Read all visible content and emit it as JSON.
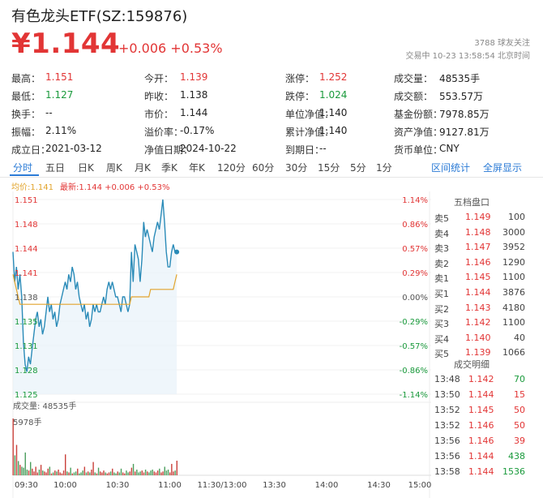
{
  "header": {
    "title": "有色龙头ETF(SZ:159876)",
    "price": "¥1.144",
    "change": "+0.006 +0.53%",
    "followers": "3788  球友关注",
    "trade_status": "交易中  10-23  13:58:54  北京时间"
  },
  "quotes": {
    "rows": [
      [
        {
          "label": "最高：",
          "value": "1.151",
          "color": "red"
        },
        {
          "label": "今开：",
          "value": "1.139",
          "color": "red"
        },
        {
          "label": "涨停：",
          "value": "1.252",
          "color": "red"
        },
        {
          "label": "成交量：",
          "value": "48535手",
          "color": "normal"
        }
      ],
      [
        {
          "label": "最低：",
          "value": "1.127",
          "color": "green"
        },
        {
          "label": "昨收：",
          "value": "1.138",
          "color": "normal"
        },
        {
          "label": "跌停：",
          "value": "1.024",
          "color": "green"
        },
        {
          "label": "成交额：",
          "value": "553.57万",
          "color": "normal"
        }
      ],
      [
        {
          "label": "换手：",
          "value": "--",
          "color": "normal"
        },
        {
          "label": "市价：",
          "value": "1.144",
          "color": "normal"
        },
        {
          "label": "单位净值：",
          "value": "1.140",
          "color": "normal"
        },
        {
          "label": "基金份额：",
          "value": "7978.85万",
          "color": "normal"
        }
      ],
      [
        {
          "label": "振幅：",
          "value": "2.11%",
          "color": "normal"
        },
        {
          "label": "溢价率：",
          "value": "-0.17%",
          "color": "normal"
        },
        {
          "label": "累计净值：",
          "value": "1.140",
          "color": "normal"
        },
        {
          "label": "资产净值：",
          "value": "9127.81万",
          "color": "normal"
        }
      ],
      [
        {
          "label": "成立日：",
          "value": "2021-03-12",
          "color": "normal"
        },
        {
          "label": "净值日期：",
          "value": "2024-10-22",
          "color": "normal"
        },
        {
          "label": "到期日：",
          "value": "--",
          "color": "normal"
        },
        {
          "label": "货币单位：",
          "value": "CNY",
          "color": "normal"
        }
      ]
    ]
  },
  "tabs": [
    "分时",
    "五日",
    "日K",
    "周K",
    "月K",
    "季K",
    "年K",
    "120分",
    "60分",
    "30分",
    "15分",
    "5分",
    "1分"
  ],
  "active_tab": "分时",
  "tab_actions": [
    "区间统计",
    "全屏显示"
  ],
  "chart_legend": {
    "avg": "均价:1.141",
    "latest": "最新:1.144 +0.006 +0.53%"
  },
  "order_book": {
    "title": "五档盘口",
    "asks": [
      {
        "label": "卖5",
        "price": "1.149",
        "volume": "100"
      },
      {
        "label": "卖4",
        "price": "1.148",
        "volume": "3000"
      },
      {
        "label": "卖3",
        "price": "1.147",
        "volume": "3952"
      },
      {
        "label": "卖2",
        "price": "1.146",
        "volume": "1290"
      },
      {
        "label": "卖1",
        "price": "1.145",
        "volume": "1100"
      }
    ],
    "bids": [
      {
        "label": "买1",
        "price": "1.144",
        "volume": "3876"
      },
      {
        "label": "买2",
        "price": "1.143",
        "volume": "4180"
      },
      {
        "label": "买3",
        "price": "1.142",
        "volume": "1100"
      },
      {
        "label": "买4",
        "price": "1.140",
        "volume": "40"
      },
      {
        "label": "买5",
        "price": "1.139",
        "volume": "1066"
      }
    ]
  },
  "trades": {
    "title": "成交明细",
    "rows": [
      {
        "time": "13:48",
        "price": "1.142",
        "volume": "70",
        "side": "buy"
      },
      {
        "time": "13:50",
        "price": "1.144",
        "volume": "15",
        "side": "sell"
      },
      {
        "time": "13:52",
        "price": "1.145",
        "volume": "50",
        "side": "sell"
      },
      {
        "time": "13:52",
        "price": "1.146",
        "volume": "50",
        "side": "sell"
      },
      {
        "time": "13:56",
        "price": "1.146",
        "volume": "39",
        "side": "sell"
      },
      {
        "time": "13:56",
        "price": "1.144",
        "volume": "438",
        "side": "buy"
      },
      {
        "time": "13:58",
        "price": "1.144",
        "volume": "1536",
        "side": "buy"
      }
    ]
  },
  "volume_panel": {
    "legend": "成交量: 48535手",
    "max_label": "5978手"
  },
  "colors": {
    "up": "#e23535",
    "down": "#1a9a3c",
    "price_line": "#2a8bb8",
    "avg_line": "#e2a42c",
    "accent": "#2b7bd6"
  },
  "chart_data": {
    "type": "line",
    "title": "",
    "price_axis": [
      "1.151",
      "1.148",
      "1.144",
      "1.141",
      "1.138",
      "1.135",
      "1.131",
      "1.128",
      "1.125"
    ],
    "percent_axis": [
      "1.14%",
      "0.86%",
      "0.57%",
      "0.29%",
      "0.00%",
      "-0.29%",
      "-0.57%",
      "-0.86%",
      "-1.14%"
    ],
    "ylim": [
      1.125,
      1.151
    ],
    "prev_close": 1.138,
    "x_ticks": [
      "09:30",
      "10:00",
      "10:30",
      "11:00",
      "11:30/13:00",
      "13:30",
      "14:00",
      "14:30",
      "15:00"
    ],
    "series": [
      {
        "name": "最新",
        "values": [
          1.144,
          1.14,
          1.142,
          1.139,
          1.141,
          1.138,
          1.132,
          1.129,
          1.128,
          1.13,
          1.129,
          1.131,
          1.133,
          1.135,
          1.136,
          1.134,
          1.135,
          1.133,
          1.134,
          1.136,
          1.138,
          1.136,
          1.137,
          1.135,
          1.136,
          1.134,
          1.135,
          1.137,
          1.138,
          1.139,
          1.14,
          1.139,
          1.141,
          1.14,
          1.142,
          1.141,
          1.139,
          1.14,
          1.138,
          1.137,
          1.136,
          1.137,
          1.135,
          1.136,
          1.134,
          1.135,
          1.137,
          1.136,
          1.137,
          1.136,
          1.136,
          1.137,
          1.138,
          1.137,
          1.139,
          1.14,
          1.139,
          1.14,
          1.139,
          1.138,
          1.138,
          1.137,
          1.136,
          1.138,
          1.138,
          1.137,
          1.136,
          1.137,
          1.144,
          1.14,
          1.145,
          1.144,
          1.143,
          1.14,
          1.143,
          1.148,
          1.146,
          1.147,
          1.146,
          1.145,
          1.144,
          1.146,
          1.147,
          1.148,
          1.147,
          1.149,
          1.151,
          1.148,
          1.144,
          1.142,
          1.142,
          1.144,
          1.145,
          1.144,
          1.144
        ]
      },
      {
        "name": "均价",
        "values": [
          1.141,
          1.14,
          1.139,
          1.138,
          1.137,
          1.137,
          1.137,
          1.137,
          1.137,
          1.137,
          1.137,
          1.137,
          1.137,
          1.137,
          1.137,
          1.137,
          1.137,
          1.137,
          1.137,
          1.137,
          1.137,
          1.137,
          1.137,
          1.137,
          1.137,
          1.137,
          1.137,
          1.137,
          1.137,
          1.137,
          1.137,
          1.137,
          1.137,
          1.137,
          1.137,
          1.137,
          1.137,
          1.137,
          1.137,
          1.137,
          1.137,
          1.137,
          1.137,
          1.137,
          1.137,
          1.137,
          1.137,
          1.137,
          1.137,
          1.137,
          1.137,
          1.137,
          1.137,
          1.137,
          1.137,
          1.137,
          1.137,
          1.137,
          1.137,
          1.137,
          1.137,
          1.137,
          1.137,
          1.137,
          1.137,
          1.137,
          1.137,
          1.137,
          1.138,
          1.138,
          1.138,
          1.138,
          1.138,
          1.138,
          1.138,
          1.138,
          1.138,
          1.138,
          1.138,
          1.139,
          1.139,
          1.139,
          1.139,
          1.139,
          1.139,
          1.139,
          1.139,
          1.139,
          1.139,
          1.139,
          1.139,
          1.139,
          1.139,
          1.14,
          1.141
        ]
      }
    ],
    "volume_max": 5978,
    "volume": [
      5978,
      2100,
      3200,
      1500,
      1100,
      900,
      800,
      2400,
      600,
      500,
      1400,
      700,
      400,
      900,
      300,
      600,
      1100,
      500,
      400,
      300,
      700,
      900,
      200,
      300,
      500,
      400,
      600,
      300,
      200,
      500,
      2200,
      400,
      300,
      800,
      200,
      300,
      400,
      700,
      200,
      300,
      500,
      900,
      300,
      400,
      300,
      600,
      1400,
      300,
      200,
      800,
      400,
      300,
      500,
      300,
      200,
      300,
      400,
      700,
      300,
      200,
      400,
      300,
      700,
      300,
      200,
      500,
      300,
      400,
      800,
      1200,
      400,
      600,
      300,
      400,
      500,
      300,
      600,
      400,
      300,
      500,
      600,
      400,
      300,
      500,
      700,
      300,
      400,
      900,
      500,
      600,
      300,
      1200,
      400,
      500,
      1536
    ]
  }
}
